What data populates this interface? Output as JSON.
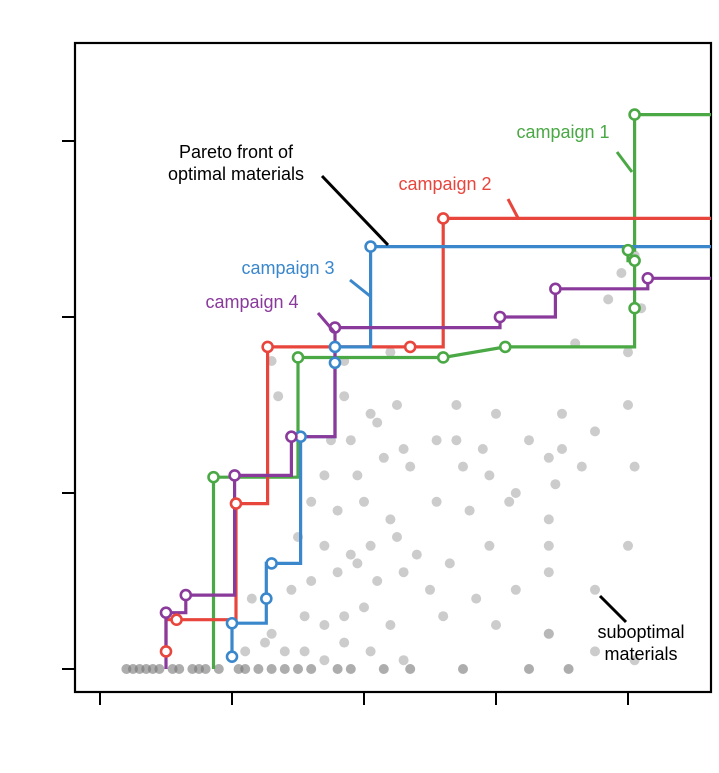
{
  "chart_data": {
    "type": "line",
    "title": "",
    "xlabel": "",
    "ylabel": "",
    "xlim": [
      -1.0,
      4.5
    ],
    "ylim": [
      -0.12,
      3.55
    ],
    "xticks": [
      -1,
      0,
      1,
      2,
      3
    ],
    "yticks": [
      0,
      1,
      2,
      3
    ],
    "tick_labels_visible": false,
    "grid": false,
    "legend": "none (direct labels)",
    "series": [
      {
        "name": "campaign 1",
        "color": "#4aa845",
        "points": [
          [
            -0.14,
            0.0
          ],
          [
            -0.14,
            1.09
          ],
          [
            0.5,
            1.09
          ],
          [
            0.5,
            1.77
          ],
          [
            1.6,
            1.77
          ],
          [
            2.07,
            1.83
          ],
          [
            3.05,
            1.83
          ],
          [
            3.05,
            2.05
          ],
          [
            3.05,
            2.32
          ],
          [
            3.05,
            2.32
          ],
          [
            3.0,
            2.32
          ],
          [
            3.0,
            2.38
          ],
          [
            3.05,
            2.38
          ],
          [
            3.05,
            3.15
          ],
          [
            4.5,
            3.15
          ]
        ],
        "markers": [
          [
            -0.14,
            1.09
          ],
          [
            0.5,
            1.77
          ],
          [
            1.6,
            1.77
          ],
          [
            2.07,
            1.83
          ],
          [
            3.05,
            2.05
          ],
          [
            3.05,
            2.32
          ],
          [
            3.0,
            2.38
          ],
          [
            3.05,
            3.15
          ]
        ],
        "step_points": [
          [
            -0.14,
            1.09
          ],
          [
            0.5,
            1.77
          ],
          [
            1.6,
            1.77
          ],
          [
            2.07,
            1.83
          ],
          [
            3.05,
            2.05
          ],
          [
            3.05,
            2.32
          ],
          [
            3.0,
            2.38
          ],
          [
            3.05,
            3.15
          ]
        ]
      },
      {
        "name": "campaign 2",
        "color": "#e8453c",
        "points": [
          [
            -0.5,
            0.1
          ],
          [
            -0.5,
            0.28
          ],
          [
            -0.42,
            0.28
          ],
          [
            0.03,
            0.28
          ],
          [
            0.03,
            0.94
          ],
          [
            0.27,
            0.94
          ],
          [
            0.27,
            1.83
          ],
          [
            1.6,
            1.83
          ],
          [
            1.6,
            2.56
          ],
          [
            4.5,
            2.56
          ]
        ],
        "markers": [
          [
            -0.5,
            0.1
          ],
          [
            -0.42,
            0.28
          ],
          [
            0.03,
            0.94
          ],
          [
            0.27,
            1.83
          ],
          [
            1.35,
            1.83
          ],
          [
            1.6,
            2.56
          ]
        ],
        "step_points": [
          [
            -0.5,
            0.1
          ],
          [
            -0.42,
            0.28
          ],
          [
            0.03,
            0.94
          ],
          [
            0.27,
            1.83
          ],
          [
            1.35,
            1.83
          ],
          [
            1.6,
            2.56
          ]
        ]
      },
      {
        "name": "campaign 3",
        "color": "#3a87cc",
        "points": [
          [
            0.0,
            0.07
          ],
          [
            0.0,
            0.26
          ],
          [
            0.26,
            0.26
          ],
          [
            0.26,
            0.6
          ],
          [
            0.52,
            0.6
          ],
          [
            0.52,
            1.32
          ],
          [
            0.78,
            1.32
          ],
          [
            0.78,
            1.74
          ],
          [
            0.78,
            1.83
          ],
          [
            1.05,
            1.83
          ],
          [
            1.05,
            2.4
          ],
          [
            4.5,
            2.4
          ]
        ],
        "markers": [
          [
            0.0,
            0.07
          ],
          [
            0.0,
            0.26
          ],
          [
            0.26,
            0.4
          ],
          [
            0.3,
            0.6
          ],
          [
            0.52,
            1.32
          ],
          [
            0.78,
            1.74
          ],
          [
            0.78,
            1.83
          ],
          [
            1.05,
            2.4
          ]
        ],
        "step_points": [
          [
            0.0,
            0.07
          ],
          [
            0.0,
            0.26
          ],
          [
            0.26,
            0.4
          ],
          [
            0.3,
            0.6
          ],
          [
            0.52,
            1.32
          ],
          [
            0.78,
            1.74
          ],
          [
            0.78,
            1.83
          ],
          [
            1.05,
            2.4
          ]
        ]
      },
      {
        "name": "campaign 4",
        "color": "#8a3a9b",
        "points": [
          [
            -0.5,
            0.0
          ],
          [
            -0.5,
            0.32
          ],
          [
            -0.35,
            0.32
          ],
          [
            -0.35,
            0.42
          ],
          [
            0.02,
            0.42
          ],
          [
            0.02,
            1.1
          ],
          [
            0.45,
            1.1
          ],
          [
            0.45,
            1.32
          ],
          [
            0.78,
            1.32
          ],
          [
            0.78,
            1.94
          ],
          [
            2.03,
            1.94
          ],
          [
            2.03,
            2.0
          ],
          [
            2.45,
            2.0
          ],
          [
            2.45,
            2.16
          ],
          [
            3.15,
            2.16
          ],
          [
            3.15,
            2.22
          ],
          [
            4.5,
            2.22
          ]
        ],
        "markers": [
          [
            -0.5,
            0.32
          ],
          [
            -0.35,
            0.42
          ],
          [
            0.02,
            1.1
          ],
          [
            0.45,
            1.32
          ],
          [
            0.78,
            1.94
          ],
          [
            2.03,
            2.0
          ],
          [
            2.45,
            2.16
          ],
          [
            3.15,
            2.22
          ]
        ],
        "step_points": [
          [
            -0.5,
            0.32
          ],
          [
            -0.35,
            0.42
          ],
          [
            0.02,
            1.1
          ],
          [
            0.45,
            1.32
          ],
          [
            0.78,
            1.94
          ],
          [
            2.03,
            2.0
          ],
          [
            2.45,
            2.16
          ],
          [
            3.15,
            2.22
          ]
        ]
      }
    ],
    "scatter_background": {
      "name": "suboptimal materials",
      "color": "#aaaaaa",
      "points": [
        [
          -0.8,
          0
        ],
        [
          -0.75,
          0
        ],
        [
          -0.7,
          0
        ],
        [
          -0.65,
          0
        ],
        [
          -0.6,
          0
        ],
        [
          -0.55,
          0
        ],
        [
          -0.45,
          0
        ],
        [
          -0.4,
          0
        ],
        [
          -0.3,
          0
        ],
        [
          -0.25,
          0
        ],
        [
          -0.2,
          0
        ],
        [
          -0.1,
          0
        ],
        [
          0.05,
          0
        ],
        [
          0.1,
          0
        ],
        [
          0.2,
          0
        ],
        [
          0.3,
          0
        ],
        [
          0.4,
          0
        ],
        [
          0.5,
          0
        ],
        [
          0.6,
          0
        ],
        [
          0.8,
          0
        ],
        [
          0.9,
          0
        ],
        [
          1.15,
          0
        ],
        [
          1.35,
          0
        ],
        [
          1.75,
          0
        ],
        [
          2.25,
          0
        ],
        [
          2.55,
          0
        ],
        [
          0.1,
          0.1
        ],
        [
          0.25,
          0.15
        ],
        [
          0.4,
          0.1
        ],
        [
          0.55,
          0.1
        ],
        [
          0.7,
          0.05
        ],
        [
          0.85,
          0.15
        ],
        [
          1.05,
          0.1
        ],
        [
          1.3,
          0.05
        ],
        [
          2.4,
          0.2
        ],
        [
          3.05,
          0.05
        ],
        [
          0.3,
          0.2
        ],
        [
          0.55,
          0.3
        ],
        [
          0.7,
          0.25
        ],
        [
          0.85,
          0.3
        ],
        [
          1.0,
          0.35
        ],
        [
          1.2,
          0.25
        ],
        [
          1.6,
          0.3
        ],
        [
          2.0,
          0.25
        ],
        [
          2.4,
          0.2
        ],
        [
          2.75,
          0.1
        ],
        [
          0.15,
          0.4
        ],
        [
          0.45,
          0.45
        ],
        [
          0.6,
          0.5
        ],
        [
          0.8,
          0.55
        ],
        [
          0.95,
          0.6
        ],
        [
          1.1,
          0.5
        ],
        [
          1.3,
          0.55
        ],
        [
          1.5,
          0.45
        ],
        [
          1.85,
          0.4
        ],
        [
          2.15,
          0.45
        ],
        [
          2.4,
          0.55
        ],
        [
          2.75,
          0.45
        ],
        [
          0.5,
          0.75
        ],
        [
          0.7,
          0.7
        ],
        [
          0.9,
          0.65
        ],
        [
          1.05,
          0.7
        ],
        [
          1.25,
          0.75
        ],
        [
          1.4,
          0.65
        ],
        [
          1.65,
          0.6
        ],
        [
          1.95,
          0.7
        ],
        [
          2.4,
          0.7
        ],
        [
          3.0,
          0.7
        ],
        [
          0.6,
          0.95
        ],
        [
          0.8,
          0.9
        ],
        [
          1.0,
          0.95
        ],
        [
          1.2,
          0.85
        ],
        [
          1.55,
          0.95
        ],
        [
          1.8,
          0.9
        ],
        [
          2.1,
          0.95
        ],
        [
          2.4,
          0.85
        ],
        [
          2.45,
          1.05
        ],
        [
          0.7,
          1.1
        ],
        [
          0.95,
          1.1
        ],
        [
          1.15,
          1.2
        ],
        [
          1.35,
          1.15
        ],
        [
          1.75,
          1.15
        ],
        [
          1.95,
          1.1
        ],
        [
          2.15,
          1.0
        ],
        [
          2.4,
          1.2
        ],
        [
          2.65,
          1.15
        ],
        [
          3.05,
          1.15
        ],
        [
          0.75,
          1.3
        ],
        [
          0.9,
          1.3
        ],
        [
          1.1,
          1.4
        ],
        [
          1.3,
          1.25
        ],
        [
          1.55,
          1.3
        ],
        [
          1.7,
          1.3
        ],
        [
          1.9,
          1.25
        ],
        [
          2.25,
          1.3
        ],
        [
          2.5,
          1.25
        ],
        [
          2.75,
          1.35
        ],
        [
          0.35,
          1.55
        ],
        [
          0.85,
          1.55
        ],
        [
          1.05,
          1.45
        ],
        [
          1.25,
          1.5
        ],
        [
          1.7,
          1.5
        ],
        [
          2.0,
          1.45
        ],
        [
          2.5,
          1.45
        ],
        [
          3.0,
          1.5
        ],
        [
          0.3,
          1.75
        ],
        [
          0.85,
          1.75
        ],
        [
          1.2,
          1.8
        ],
        [
          2.6,
          1.85
        ],
        [
          3.0,
          1.8
        ],
        [
          3.1,
          2.05
        ],
        [
          2.85,
          2.1
        ],
        [
          2.95,
          2.25
        ],
        [
          3.05,
          2.35
        ]
      ]
    },
    "annotations": [
      {
        "text": "Pareto front of\noptimal materials",
        "points_to": [
          1.05,
          2.4
        ]
      },
      {
        "text": "campaign 1",
        "points_to": [
          3.05,
          2.85
        ]
      },
      {
        "text": "campaign 2",
        "points_to": [
          2.2,
          2.56
        ]
      },
      {
        "text": "campaign 3",
        "points_to": [
          1.05,
          2.15
        ]
      },
      {
        "text": "campaign 4",
        "points_to": [
          0.78,
          1.94
        ]
      },
      {
        "text": "suboptimal\nmaterials",
        "points_to": [
          2.8,
          0.45
        ]
      }
    ]
  }
}
